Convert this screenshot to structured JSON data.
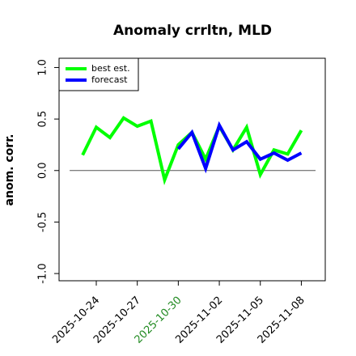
{
  "chart_data": {
    "type": "line",
    "title": "Anomaly crrltn, MLD",
    "y_label": "anom. corr.",
    "x": [
      "2025-10-23",
      "2025-10-24",
      "2025-10-25",
      "2025-10-26",
      "2025-10-27",
      "2025-10-28",
      "2025-10-29",
      "2025-10-30",
      "2025-10-31",
      "2025-11-01",
      "2025-11-02",
      "2025-11-03",
      "2025-11-04",
      "2025-11-05",
      "2025-11-06",
      "2025-11-07",
      "2025-11-08"
    ],
    "series": [
      {
        "name": "best est.",
        "color": "#00ff00",
        "values": [
          0.15,
          0.42,
          0.32,
          0.51,
          0.43,
          0.48,
          -0.09,
          0.25,
          0.37,
          0.11,
          0.43,
          0.2,
          0.42,
          -0.04,
          0.2,
          0.16,
          0.39
        ]
      },
      {
        "name": "forecast",
        "color": "#0000ff",
        "values": [
          null,
          null,
          null,
          null,
          null,
          null,
          null,
          0.21,
          0.37,
          0.02,
          0.44,
          0.2,
          0.28,
          0.11,
          0.17,
          0.1,
          0.17
        ]
      }
    ],
    "xlim": [
      "2025-10-21T06:40",
      "2025-11-09T18:00"
    ],
    "xticks": [
      "2025-10-24",
      "2025-10-27",
      "2025-10-30",
      "2025-11-02",
      "2025-11-05",
      "2025-11-08"
    ],
    "xtick_colors": [
      "#000000",
      "#000000",
      "#228b22",
      "#000000",
      "#000000",
      "#000000"
    ],
    "ylim": [
      -1.07,
      1.09
    ],
    "yticks": [
      {
        "value": -1,
        "label": "-1.0"
      },
      {
        "value": -0.5,
        "label": "-0.5"
      },
      {
        "value": 0,
        "label": "0.0"
      },
      {
        "value": 0.5,
        "label": "0.5"
      },
      {
        "value": 1,
        "label": "1.0"
      }
    ],
    "reference_line": 0,
    "legend": "top-left"
  }
}
